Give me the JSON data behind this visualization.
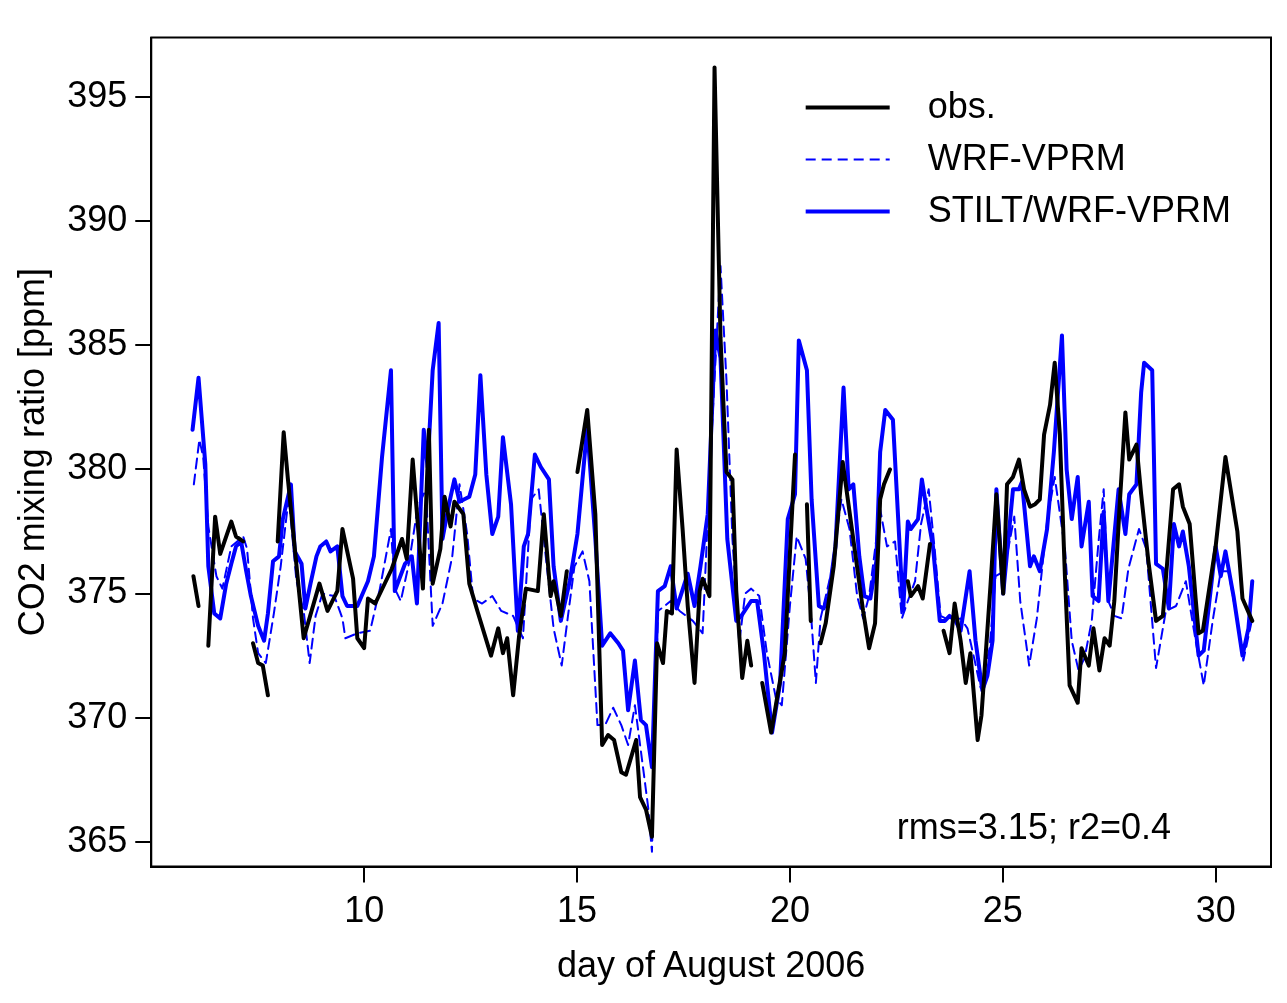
{
  "chart_data": {
    "type": "line",
    "xlabel": "day of August 2006",
    "ylabel": "CO2 mixing ratio [ppm]",
    "xlim": [
      5,
      31.3
    ],
    "ylim": [
      364,
      397.4
    ],
    "xticks": [
      10,
      15,
      20,
      25,
      30
    ],
    "yticks": [
      365,
      370,
      375,
      380,
      385,
      390,
      395
    ],
    "legend": "top right",
    "marker": "none",
    "annotations": [
      "rms=3.15; r2=0.4"
    ],
    "series": [
      {
        "name": "obs.",
        "color": "#000000",
        "line_style": "solid",
        "x": [
          5.99,
          6.11,
          6.2,
          6.34,
          6.5,
          6.62,
          6.88,
          6.99,
          7.16,
          7.28,
          7.39,
          7.51,
          7.62,
          7.74,
          7.85,
          7.97,
          8.11,
          8.21,
          8.58,
          8.95,
          9.14,
          9.37,
          9.49,
          9.74,
          9.84,
          10.0,
          10.09,
          10.26,
          10.65,
          10.89,
          11.0,
          11.14,
          11.38,
          11.52,
          11.61,
          11.79,
          11.89,
          12.03,
          12.12,
          12.33,
          12.47,
          12.66,
          12.98,
          13.15,
          13.26,
          13.36,
          13.5,
          13.64,
          13.8,
          14.08,
          14.22,
          14.38,
          14.45,
          14.62,
          14.76,
          14.9,
          15.01,
          15.24,
          15.43,
          15.59,
          15.73,
          15.87,
          16.04,
          16.15,
          16.39,
          16.48,
          16.62,
          16.76,
          16.88,
          17.02,
          17.11,
          17.23,
          17.34,
          17.48,
          17.6,
          17.76,
          17.88,
          17.95,
          18.11,
          18.23,
          18.37,
          18.51,
          18.65,
          18.74,
          18.88,
          19.0,
          19.09,
          19.2,
          19.35,
          19.56,
          19.88,
          20.12,
          20.25,
          20.4,
          20.49,
          20.6,
          20.72,
          20.84,
          21.03,
          21.24,
          21.72,
          21.86,
          22.0,
          22.12,
          22.21,
          22.35,
          22.55,
          22.77,
          22.84,
          23.01,
          23.12,
          23.29,
          23.45,
          23.61,
          23.75,
          23.87,
          24.01,
          24.13,
          24.24,
          24.41,
          24.5,
          24.71,
          24.85,
          25.01,
          25.1,
          25.24,
          25.38,
          25.5,
          25.64,
          25.76,
          25.87,
          25.97,
          26.11,
          26.22,
          26.34,
          26.46,
          26.57,
          26.76,
          26.85,
          27.02,
          27.13,
          27.27,
          27.39,
          27.51,
          27.62,
          27.74,
          27.88,
          27.97,
          28.14,
          28.25,
          28.42,
          28.6,
          28.76,
          29.0,
          29.14,
          29.23,
          29.39,
          29.53,
          29.6,
          29.7,
          30.0,
          30.23,
          30.51,
          30.63,
          30.86
        ],
        "values": [
          375.7,
          374.5,
          null,
          372.9,
          378.1,
          376.6,
          377.9,
          377.3,
          377.1,
          null,
          373.0,
          372.2,
          372.1,
          370.9,
          null,
          377.1,
          381.5,
          379.6,
          373.2,
          375.4,
          374.3,
          375.1,
          377.6,
          375.6,
          373.2,
          372.8,
          374.8,
          374.6,
          376.0,
          377.2,
          376.4,
          380.4,
          375.2,
          381.6,
          375.4,
          376.8,
          378.9,
          377.7,
          378.7,
          378.2,
          375.4,
          374.3,
          372.5,
          373.6,
          372.6,
          373.2,
          370.9,
          373.3,
          375.2,
          375.1,
          378.2,
          374.9,
          375.5,
          374.1,
          375.9,
          null,
          379.9,
          382.4,
          378.2,
          368.9,
          369.3,
          369.1,
          367.8,
          367.7,
          369.1,
          366.8,
          366.3,
          365.2,
          373.0,
          372.2,
          374.3,
          374.2,
          380.8,
          377.6,
          374.5,
          371.4,
          375.1,
          375.6,
          374.9,
          396.2,
          385.3,
          379.9,
          379.6,
          375.1,
          371.6,
          373.1,
          372.1,
          null,
          371.4,
          369.4,
          372.6,
          380.6,
          null,
          378.6,
          373.9,
          null,
          373.0,
          373.8,
          376.1,
          380.3,
          374.3,
          372.8,
          373.8,
          378.8,
          379.4,
          380.0,
          null,
          375.5,
          374.9,
          375.3,
          374.8,
          377.0,
          null,
          373.5,
          372.6,
          374.6,
          373.1,
          371.4,
          372.6,
          369.1,
          370.1,
          375.3,
          379.0,
          375.0,
          379.4,
          379.7,
          380.4,
          379.2,
          378.5,
          378.6,
          378.8,
          381.4,
          382.6,
          384.3,
          381.4,
          375.7,
          371.3,
          370.6,
          372.8,
          372.1,
          373.6,
          371.9,
          373.2,
          372.9,
          374.7,
          378.4,
          382.3,
          380.4,
          381.0,
          379.0,
          376.3,
          373.9,
          374.1,
          379.2,
          379.4,
          378.5,
          377.8,
          374.8,
          373.4,
          373.5,
          376.9,
          380.5,
          377.5,
          374.8,
          373.9
        ]
      },
      {
        "name": "WRF-VPRM",
        "color": "#0000ff",
        "line_style": "dashed",
        "x": [
          6.0,
          6.13,
          6.22,
          6.34,
          6.53,
          6.67,
          6.88,
          7.16,
          7.25,
          7.39,
          7.51,
          7.69,
          7.88,
          8.04,
          8.23,
          8.41,
          8.58,
          8.72,
          8.86,
          9.02,
          9.3,
          9.49,
          9.56,
          9.84,
          10.14,
          10.37,
          10.63,
          10.72,
          10.86,
          11.05,
          11.26,
          11.45,
          11.61,
          11.84,
          12.07,
          12.24,
          12.42,
          12.56,
          12.77,
          13.01,
          13.22,
          13.5,
          13.73,
          13.92,
          14.1,
          14.24,
          14.45,
          14.64,
          14.78,
          14.94,
          15.13,
          15.29,
          15.48,
          15.66,
          15.85,
          16.04,
          16.2,
          16.36,
          16.55,
          16.67,
          16.76,
          16.9,
          17.06,
          17.2,
          17.41,
          17.72,
          17.95,
          18.14,
          18.28,
          18.37,
          18.51,
          18.65,
          18.81,
          18.95,
          19.09,
          19.28,
          19.46,
          19.67,
          19.81,
          20.0,
          20.16,
          20.37,
          20.49,
          20.61,
          20.72,
          20.98,
          21.21,
          21.4,
          21.58,
          21.72,
          21.86,
          22.12,
          22.28,
          22.47,
          22.63,
          22.77,
          22.94,
          23.08,
          23.26,
          23.4,
          23.54,
          23.78,
          24.01,
          24.17,
          24.34,
          24.48,
          24.69,
          24.83,
          25.03,
          25.27,
          25.41,
          25.62,
          25.8,
          26.04,
          26.22,
          26.46,
          26.62,
          26.78,
          26.92,
          27.09,
          27.25,
          27.37,
          27.48,
          27.62,
          27.79,
          27.95,
          28.2,
          28.37,
          28.6,
          28.83,
          29.07,
          29.3,
          29.53,
          29.72,
          29.93,
          30.12,
          30.3,
          30.54,
          30.65,
          30.86
        ],
        "values": [
          379.4,
          381.2,
          380.5,
          377.7,
          375.7,
          375.2,
          376.9,
          377.3,
          376.8,
          374.0,
          372.6,
          372.2,
          374.2,
          376.1,
          378.9,
          375.5,
          374.3,
          372.2,
          374.1,
          375.0,
          374.9,
          374.0,
          373.2,
          373.4,
          373.5,
          375.2,
          377.6,
          375.2,
          374.7,
          376.2,
          378.5,
          379.2,
          373.7,
          374.6,
          376.5,
          379.4,
          377.4,
          374.8,
          374.6,
          374.9,
          374.3,
          374.1,
          373.2,
          378.8,
          379.2,
          376.9,
          373.6,
          372.1,
          374.0,
          376.1,
          376.7,
          375.5,
          369.7,
          369.7,
          370.4,
          369.7,
          368.9,
          370.5,
          368.0,
          366.4,
          364.6,
          374.3,
          374.5,
          374.7,
          374.3,
          373.9,
          373.4,
          380.7,
          385.3,
          388.2,
          383.6,
          377.2,
          373.0,
          375.0,
          375.2,
          374.9,
          372.6,
          370.8,
          370.5,
          374.5,
          377.3,
          376.4,
          374.3,
          371.4,
          374.0,
          375.9,
          378.8,
          377.6,
          374.9,
          374.0,
          374.9,
          378.4,
          376.9,
          377.1,
          374.0,
          374.7,
          375.5,
          377.8,
          379.2,
          376.8,
          374.1,
          373.9,
          374.0,
          373.6,
          372.3,
          371.2,
          372.8,
          375.7,
          375.9,
          378.1,
          374.7,
          372.1,
          374.0,
          377.9,
          379.7,
          376.8,
          373.1,
          371.9,
          372.4,
          373.9,
          377.1,
          379.2,
          374.7,
          374.1,
          374.0,
          376.0,
          377.6,
          376.8,
          372.0,
          374.3,
          374.5,
          375.5,
          373.1,
          371.3,
          373.9,
          375.9,
          375.9,
          373.6,
          372.3,
          374.0
        ]
      },
      {
        "name": "STILT/WRF-VPRM",
        "color": "#0000ff",
        "line_style": "solid",
        "x": [
          5.97,
          6.11,
          6.27,
          6.34,
          6.48,
          6.62,
          6.76,
          6.88,
          6.99,
          7.11,
          7.23,
          7.34,
          7.51,
          7.65,
          7.74,
          7.86,
          8.0,
          8.09,
          8.28,
          8.37,
          8.53,
          8.62,
          8.74,
          8.88,
          8.97,
          9.11,
          9.21,
          9.37,
          9.49,
          9.6,
          9.84,
          10.09,
          10.23,
          10.42,
          10.63,
          10.72,
          10.96,
          11.12,
          11.24,
          11.4,
          11.49,
          11.61,
          11.75,
          11.84,
          11.98,
          12.12,
          12.24,
          12.47,
          12.61,
          12.73,
          12.87,
          13.01,
          13.15,
          13.26,
          13.45,
          13.61,
          13.75,
          13.85,
          14.01,
          14.15,
          14.34,
          14.45,
          14.62,
          14.83,
          15.01,
          15.24,
          15.43,
          15.59,
          15.78,
          15.97,
          16.08,
          16.2,
          16.36,
          16.5,
          16.62,
          16.76,
          16.9,
          17.06,
          17.2,
          17.34,
          17.6,
          17.76,
          17.9,
          18.07,
          18.25,
          18.37,
          18.53,
          18.74,
          18.86,
          19.09,
          19.23,
          19.39,
          19.58,
          19.77,
          19.95,
          20.12,
          20.21,
          20.4,
          20.51,
          20.68,
          20.79,
          20.91,
          21.07,
          21.26,
          21.38,
          21.49,
          21.63,
          21.75,
          21.89,
          22.03,
          22.12,
          22.24,
          22.42,
          22.59,
          22.66,
          22.77,
          22.84,
          23.01,
          23.1,
          23.22,
          23.36,
          23.52,
          23.64,
          23.75,
          23.89,
          24.01,
          24.22,
          24.36,
          24.52,
          24.64,
          24.76,
          24.85,
          25.01,
          25.24,
          25.38,
          25.45,
          25.64,
          25.73,
          25.87,
          26.04,
          26.2,
          26.39,
          26.5,
          26.62,
          26.76,
          26.85,
          27.02,
          27.11,
          27.25,
          27.37,
          27.48,
          27.72,
          27.88,
          27.97,
          28.14,
          28.25,
          28.32,
          28.51,
          28.6,
          28.76,
          28.9,
          29.02,
          29.14,
          29.23,
          29.37,
          29.6,
          29.72,
          30.0,
          30.12,
          30.23,
          30.42,
          30.63,
          30.77,
          30.86
        ],
        "values": [
          381.6,
          383.7,
          380.2,
          376.1,
          374.2,
          374.0,
          375.4,
          376.2,
          376.9,
          377.1,
          375.9,
          374.9,
          373.7,
          373.1,
          374.2,
          376.3,
          376.5,
          378.0,
          379.4,
          376.7,
          376.2,
          374.4,
          375.4,
          376.5,
          376.9,
          377.1,
          376.7,
          376.9,
          374.9,
          374.5,
          374.5,
          375.5,
          376.5,
          380.5,
          384.0,
          375.1,
          376.2,
          376.5,
          374.6,
          381.6,
          380.1,
          384.0,
          385.9,
          377.2,
          378.5,
          379.6,
          378.7,
          378.9,
          379.8,
          383.8,
          379.8,
          377.4,
          378.1,
          381.3,
          378.6,
          373.5,
          376.9,
          377.4,
          380.6,
          380.1,
          379.6,
          376.1,
          373.9,
          375.5,
          377.4,
          381.7,
          377.2,
          372.9,
          373.4,
          373.0,
          372.7,
          370.3,
          372.3,
          369.9,
          369.7,
          368.0,
          375.1,
          375.3,
          376.1,
          374.4,
          375.8,
          374.5,
          376.1,
          378.2,
          385.6,
          384.5,
          377.2,
          373.9,
          374.1,
          374.7,
          374.7,
          372.6,
          369.4,
          371.4,
          378.0,
          379.0,
          385.2,
          384.0,
          378.8,
          374.5,
          374.4,
          374.9,
          376.9,
          383.3,
          379.2,
          379.4,
          376.5,
          374.9,
          374.8,
          376.3,
          380.7,
          382.4,
          382.0,
          376.5,
          374.3,
          377.9,
          377.6,
          378.0,
          379.6,
          378.3,
          376.9,
          373.9,
          373.9,
          374.1,
          373.9,
          373.5,
          375.9,
          373.1,
          371.1,
          371.7,
          373.1,
          379.2,
          375.0,
          379.2,
          379.2,
          379.5,
          376.1,
          376.5,
          375.9,
          377.6,
          380.7,
          385.4,
          380.0,
          378.0,
          379.7,
          376.9,
          378.7,
          374.9,
          374.7,
          378.3,
          374.7,
          379.2,
          377.4,
          379.0,
          379.4,
          383.1,
          384.3,
          384.0,
          376.2,
          376.0,
          374.4,
          377.8,
          376.9,
          377.5,
          376.1,
          372.5,
          372.7,
          376.9,
          375.7,
          376.7,
          374.9,
          372.5,
          373.6,
          375.5
        ]
      }
    ]
  }
}
